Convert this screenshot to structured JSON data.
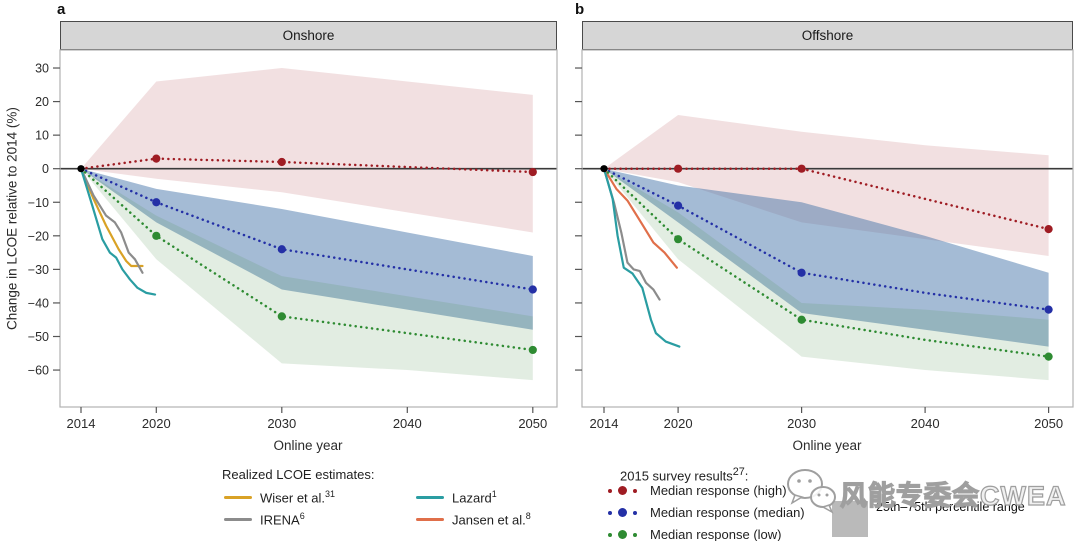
{
  "figure": {
    "panels": [
      {
        "letter": "a",
        "title": "Onshore"
      },
      {
        "letter": "b",
        "title": "Offshore"
      }
    ],
    "ylabel": "Change in LCOE relative to 2014 (%)",
    "xlabel": "Online year"
  },
  "chart_data": [
    {
      "type": "line",
      "title": "Onshore",
      "xlabel": "Online year",
      "ylabel": "Change in LCOE relative to 2014 (%)",
      "xlim": [
        2012.3,
        2052
      ],
      "ylim": [
        -71,
        35.4
      ],
      "xticks": [
        2014,
        2020,
        2030,
        2040,
        2050
      ],
      "yticks": [
        30,
        20,
        10,
        0,
        -10,
        -20,
        -30,
        -40,
        -50,
        -60
      ],
      "grid": false,
      "survey_years": [
        2014,
        2020,
        2030,
        2040,
        2050
      ],
      "marker_years": [
        2020,
        2030,
        2050
      ],
      "series": [
        {
          "name": "Median response (high)",
          "color": "#9f1c23",
          "values": [
            0,
            3,
            2,
            0.5,
            -1
          ],
          "band_upper": [
            0,
            26,
            30,
            26,
            22
          ],
          "band_lower": [
            0,
            -3,
            -7,
            -13,
            -19
          ],
          "band_color": "#a63038",
          "band_opacity": 0.15
        },
        {
          "name": "Median response (median)",
          "color": "#2430a6",
          "values": [
            0,
            -10,
            -24,
            -30,
            -36
          ],
          "band_upper": [
            0,
            -6,
            -12,
            -19,
            -26
          ],
          "band_lower": [
            0,
            -16,
            -36,
            -42,
            -48
          ],
          "band_color": "#3d6fa5",
          "band_opacity": 0.47
        },
        {
          "name": "Median response (low)",
          "color": "#2e8b32",
          "values": [
            0,
            -20,
            -44,
            -49,
            -54
          ],
          "band_upper": [
            0,
            -14,
            -32,
            -38,
            -44
          ],
          "band_lower": [
            0,
            -27,
            -58,
            -60,
            -63
          ],
          "band_color": "#4a924a",
          "band_opacity": 0.16
        }
      ],
      "realized": [
        {
          "name": "Wiser et al.",
          "color": "#d9a226",
          "points": [
            [
              2014,
              0
            ],
            [
              2015,
              -9
            ],
            [
              2016,
              -17
            ],
            [
              2017,
              -24
            ],
            [
              2017.6,
              -27.5
            ],
            [
              2018,
              -29
            ],
            [
              2018.9,
              -29
            ]
          ]
        },
        {
          "name": "IRENA",
          "color": "#8c8c8c",
          "points": [
            [
              2014,
              0
            ],
            [
              2015,
              -8
            ],
            [
              2016,
              -14
            ],
            [
              2016.7,
              -16
            ],
            [
              2017.2,
              -19
            ],
            [
              2017.8,
              -25
            ],
            [
              2018.3,
              -27
            ],
            [
              2018.9,
              -31
            ]
          ]
        },
        {
          "name": "Lazard",
          "color": "#2a9da2",
          "points": [
            [
              2014,
              0
            ],
            [
              2014.9,
              -11
            ],
            [
              2015.7,
              -21
            ],
            [
              2016.3,
              -25
            ],
            [
              2016.8,
              -26.5
            ],
            [
              2017.3,
              -30
            ],
            [
              2017.9,
              -33
            ],
            [
              2018.5,
              -35.5
            ],
            [
              2019.2,
              -37
            ],
            [
              2019.9,
              -37.5
            ]
          ]
        }
      ]
    },
    {
      "type": "line",
      "title": "Offshore",
      "xlabel": "Online year",
      "ylabel": "Change in LCOE relative to 2014 (%)",
      "xlim": [
        2012.3,
        2052
      ],
      "ylim": [
        -71,
        35.4
      ],
      "xticks": [
        2014,
        2020,
        2030,
        2040,
        2050
      ],
      "yticks": [
        30,
        20,
        10,
        0,
        -10,
        -20,
        -30,
        -40,
        -50,
        -60
      ],
      "grid": false,
      "survey_years": [
        2014,
        2020,
        2030,
        2040,
        2050
      ],
      "marker_years": [
        2020,
        2030,
        2050
      ],
      "series": [
        {
          "name": "Median response (high)",
          "color": "#9f1c23",
          "values": [
            0,
            0,
            0,
            -9,
            -18
          ],
          "band_upper": [
            0,
            16,
            11,
            7,
            4
          ],
          "band_lower": [
            0,
            -4,
            -16,
            -21,
            -26
          ],
          "band_color": "#a63038",
          "band_opacity": 0.15
        },
        {
          "name": "Median response (median)",
          "color": "#2430a6",
          "values": [
            0,
            -11,
            -31,
            -37,
            -42
          ],
          "band_upper": [
            0,
            -5,
            -10,
            -20,
            -31
          ],
          "band_lower": [
            0,
            -16,
            -43,
            -48,
            -53
          ],
          "band_color": "#3d6fa5",
          "band_opacity": 0.47
        },
        {
          "name": "Median response (low)",
          "color": "#2e8b32",
          "values": [
            0,
            -21,
            -45,
            -51,
            -56
          ],
          "band_upper": [
            0,
            -13,
            -40,
            -42,
            -45
          ],
          "band_lower": [
            0,
            -27,
            -56,
            -60,
            -63
          ],
          "band_color": "#4a924a",
          "band_opacity": 0.16
        }
      ],
      "realized": [
        {
          "name": "IRENA",
          "color": "#8c8c8c",
          "points": [
            [
              2014,
              0
            ],
            [
              2014.8,
              -10
            ],
            [
              2015.4,
              -19
            ],
            [
              2015.9,
              -28
            ],
            [
              2016.4,
              -30
            ],
            [
              2016.9,
              -30.5
            ],
            [
              2017.4,
              -34
            ],
            [
              2018,
              -36
            ],
            [
              2018.5,
              -39
            ]
          ]
        },
        {
          "name": "Jansen et al.",
          "color": "#e06f4a",
          "points": [
            [
              2014,
              0
            ],
            [
              2015,
              -6
            ],
            [
              2015.9,
              -9.5
            ],
            [
              2017,
              -16
            ],
            [
              2018,
              -22
            ],
            [
              2018.9,
              -25
            ],
            [
              2019.9,
              -29.5
            ]
          ]
        },
        {
          "name": "Lazard",
          "color": "#2a9da2",
          "points": [
            [
              2014,
              0
            ],
            [
              2014.7,
              -9
            ],
            [
              2015.1,
              -20
            ],
            [
              2015.6,
              -29.5
            ],
            [
              2016.3,
              -31.2
            ],
            [
              2017.1,
              -35.5
            ],
            [
              2017.8,
              -45
            ],
            [
              2018.2,
              -49
            ],
            [
              2019,
              -51.5
            ],
            [
              2020.1,
              -53
            ]
          ]
        }
      ]
    }
  ],
  "legend": {
    "realized_title": "Realized LCOE estimates:",
    "realized_items": [
      {
        "label": "Wiser et al.",
        "sup": "31",
        "color": "#d9a226"
      },
      {
        "label": "IRENA",
        "sup": "6",
        "color": "#8c8c8c"
      },
      {
        "label": "Lazard",
        "sup": "1",
        "color": "#2a9da2"
      },
      {
        "label": "Jansen et al.",
        "sup": "8",
        "color": "#e06f4a"
      }
    ],
    "survey_title": "2015 survey results",
    "survey_title_sup": "27",
    "survey_title_colon": ":",
    "survey_items": [
      {
        "label": "Median response (high)",
        "color": "#9f1c23"
      },
      {
        "label": "Median response (median)",
        "color": "#2430a6"
      },
      {
        "label": "Median response (low)",
        "color": "#2e8b32"
      }
    ],
    "percentile_label": "25th–75th percentile range",
    "percentile_swatch_color": "#bababa"
  },
  "watermark": {
    "text": "风能专委会CWEA",
    "icon": "wechat-icon"
  }
}
